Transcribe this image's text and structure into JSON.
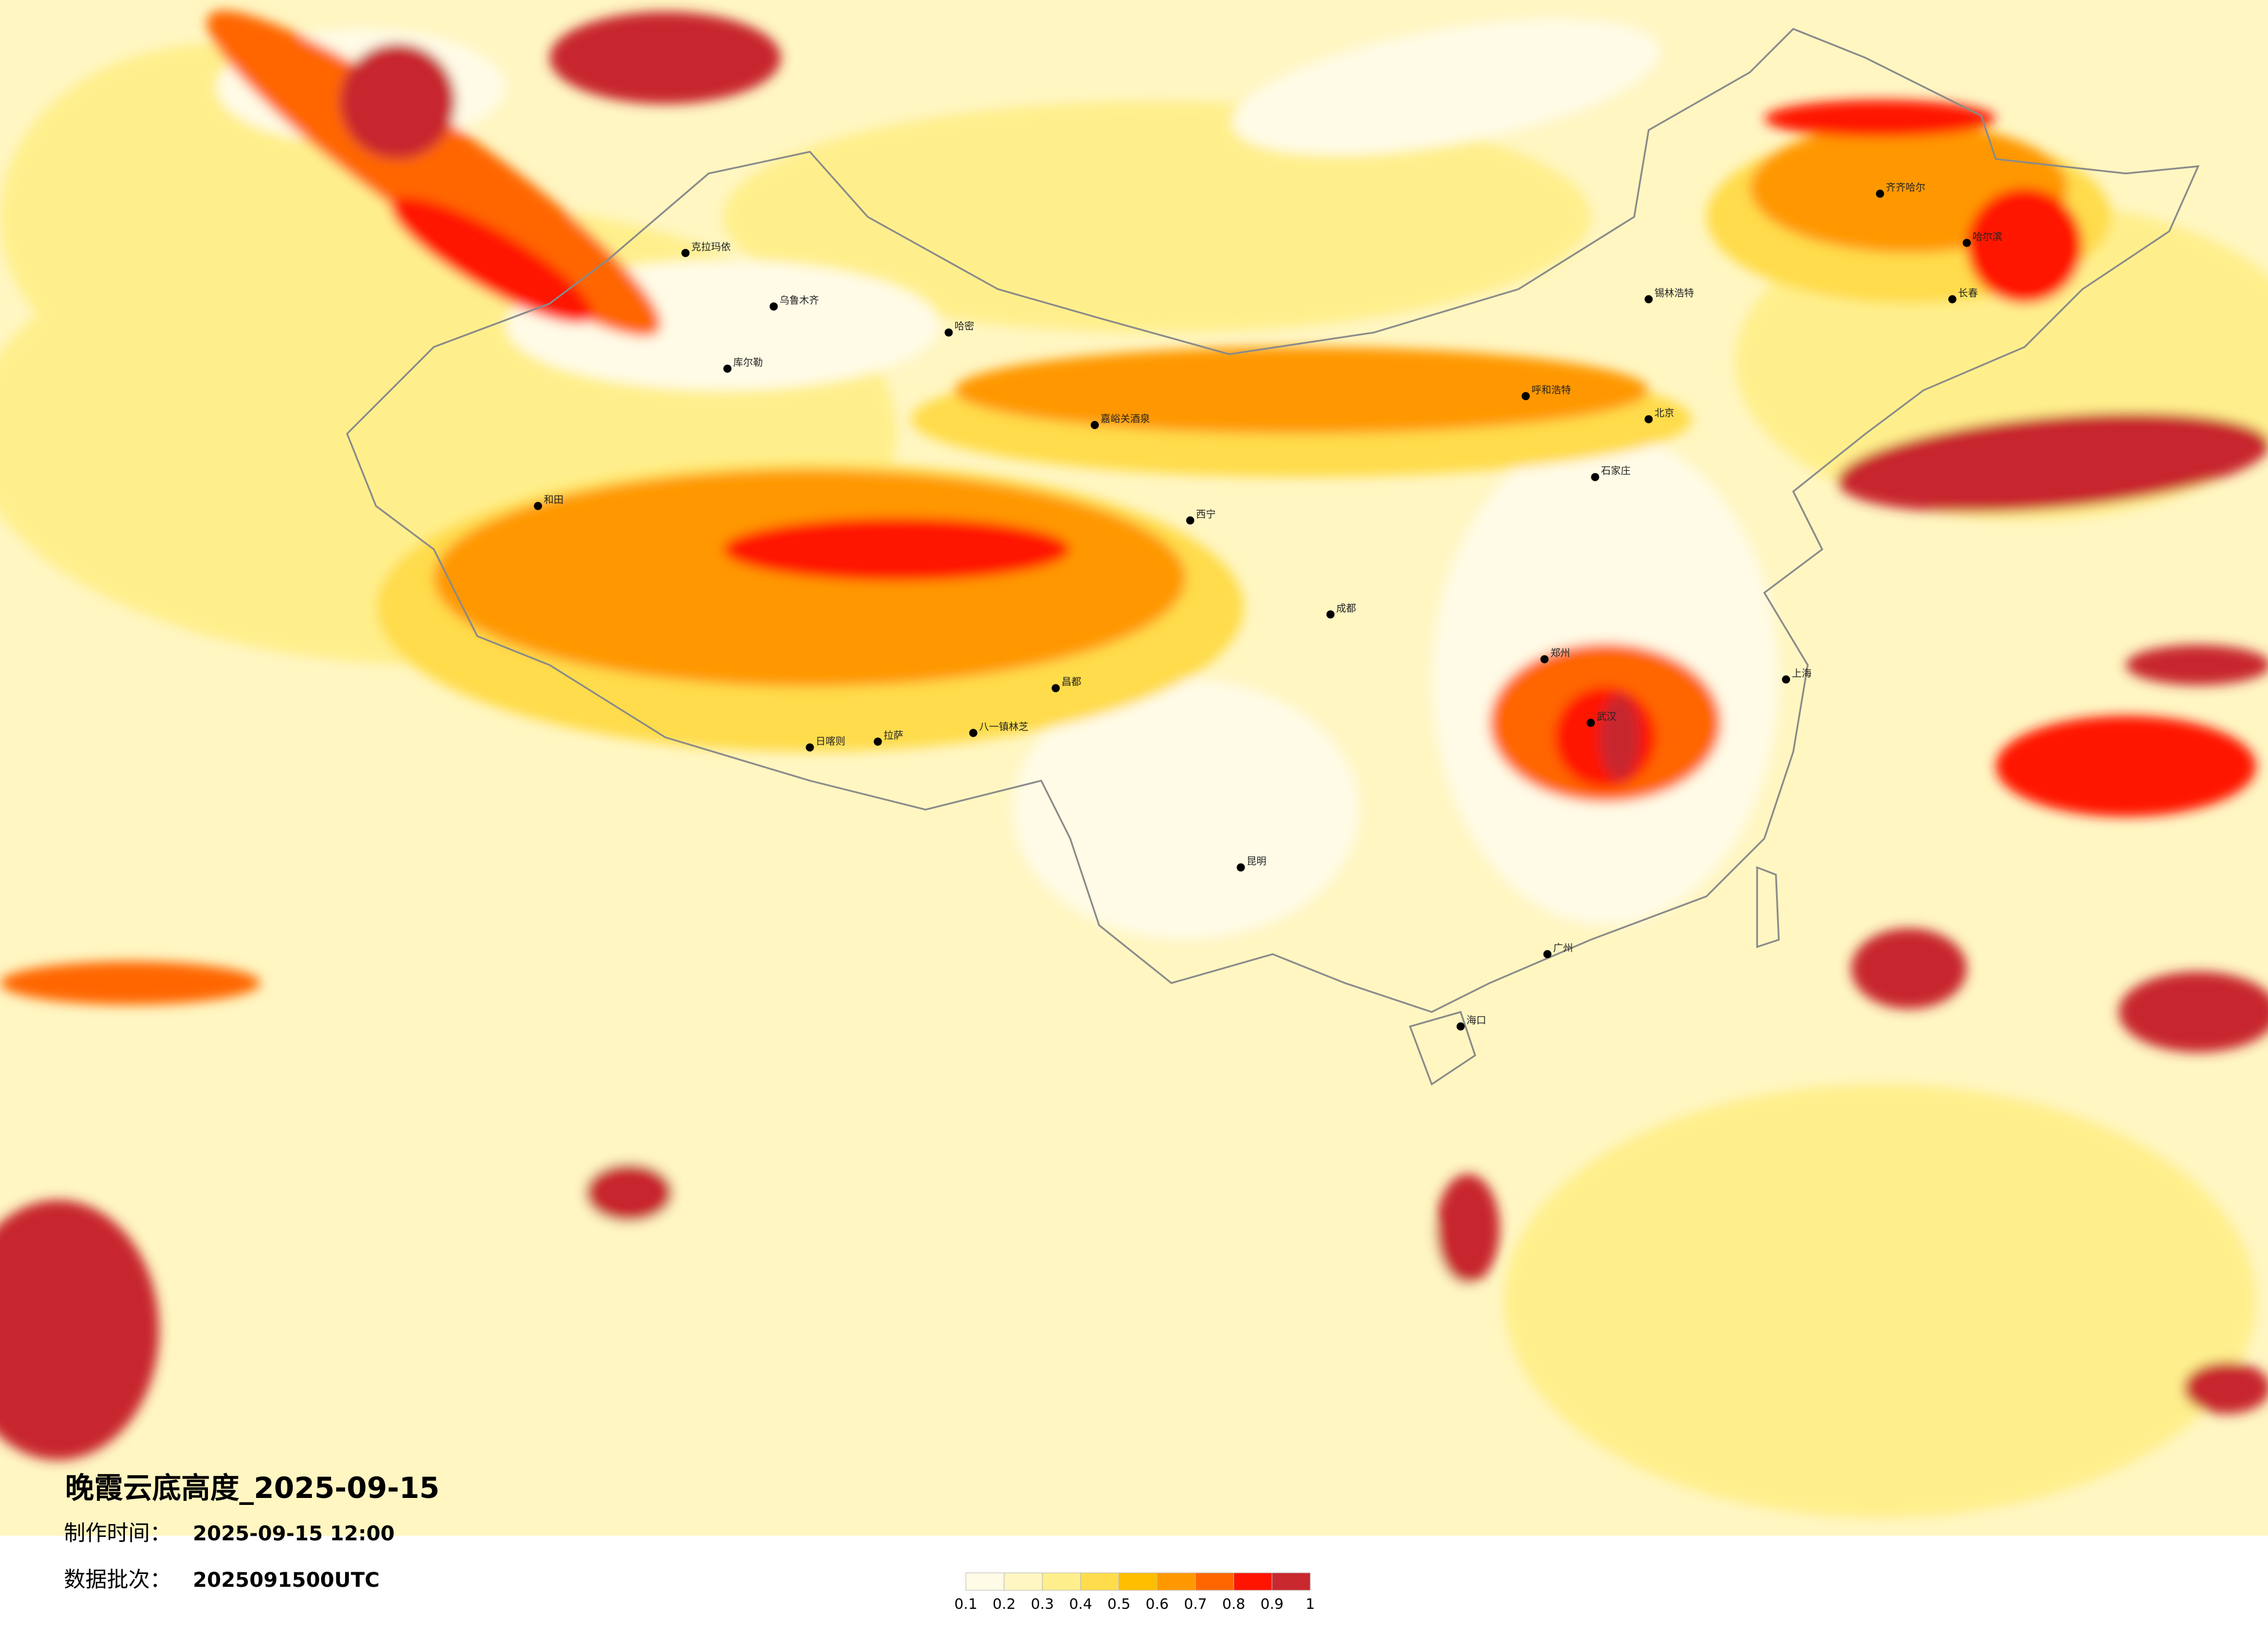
{
  "title": "晚霞云底高度_2025-09-15",
  "production_time": {
    "label": "制作时间：",
    "value": "2025-09-15 12:00"
  },
  "data_batch": {
    "label": "数据批次：",
    "value": "2025091500UTC"
  },
  "colorbar": {
    "ticks": [
      0.1,
      0.2,
      0.3,
      0.4,
      0.5,
      0.6,
      0.7,
      0.8,
      0.9,
      1
    ],
    "colors": [
      "#fffbe6",
      "#fff6c2",
      "#ffef8c",
      "#ffdc4c",
      "#ffbe00",
      "#ff9800",
      "#ff6600",
      "#ff1400",
      "#c8282e"
    ]
  },
  "cities": [
    "克拉玛依",
    "乌鲁木齐",
    "哈密",
    "库尔勒",
    "和田",
    "日喀则",
    "拉萨",
    "八一镇林芝",
    "昌都",
    "嘉峪关酒泉",
    "西宁",
    "呼和浩特",
    "锡林浩特",
    "齐齐哈尔",
    "哈尔滨",
    "长春",
    "北京",
    "石家庄",
    "郑州",
    "武汉",
    "成都",
    "昆明",
    "广州",
    "上海",
    "海口"
  ]
}
